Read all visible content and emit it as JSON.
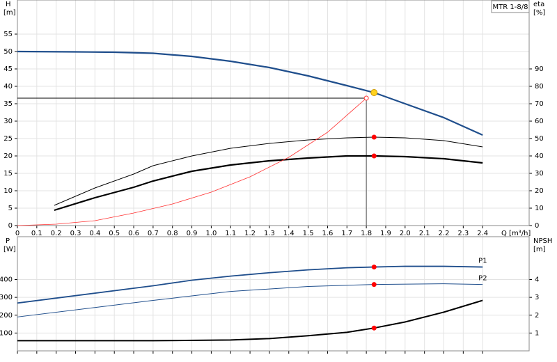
{
  "chart_data": [
    {
      "type": "line",
      "title": "MTR 1-8/8",
      "ylabel": "H",
      "ylabel_unit": "[m]",
      "y2label": "eta",
      "y2label_unit": "[%]",
      "xlabel": "Q [m³/h]",
      "xlim": [
        0,
        2.64
      ],
      "xticks": [
        0,
        0.1,
        0.2,
        0.3,
        0.4,
        0.5,
        0.6,
        0.7,
        0.8,
        0.9,
        {
          "value": 1,
          "label": "1.0"
        },
        1.1,
        1.2,
        1.3,
        1.4,
        1.5,
        1.6,
        1.7,
        1.8,
        1.9,
        {
          "value": 2,
          "label": "2.0"
        },
        2.1,
        2.2,
        2.3,
        2.4
      ],
      "ylim": [
        0,
        64.8
      ],
      "yticks": [
        0,
        5,
        10,
        15,
        20,
        25,
        30,
        35,
        40,
        45,
        50,
        55
      ],
      "y2lim": [
        0,
        129.6
      ],
      "y2ticks": [
        0,
        10,
        20,
        30,
        40,
        50,
        60,
        70,
        80,
        90
      ],
      "grid": true,
      "highlight_x": 1.84,
      "duty_point": {
        "x": 1.8,
        "y": 36.6
      },
      "series": [
        {
          "color": "#1f4e8c",
          "line_width": 2.2,
          "marker_color": "#ffd21f",
          "x": [
            0,
            0.3,
            0.5,
            0.7,
            0.9,
            1.1,
            1.3,
            1.5,
            1.7,
            1.84,
            2.0,
            2.2,
            2.4
          ],
          "values": [
            50,
            49.9,
            49.8,
            49.5,
            48.6,
            47.2,
            45.4,
            43,
            40.2,
            38.2,
            35,
            31,
            26
          ]
        },
        {
          "color": "#000000",
          "line_width": 1,
          "axis": "y2",
          "marker_color": "#ff0000",
          "x": [
            0.19,
            0.4,
            0.6,
            0.7,
            0.9,
            1.1,
            1.3,
            1.5,
            1.7,
            1.84,
            2.0,
            2.2,
            2.4
          ],
          "values": [
            11.6,
            21.6,
            29.6,
            34.4,
            40,
            44.4,
            47.2,
            49.2,
            50.4,
            50.8,
            50.4,
            48.8,
            45.2
          ]
        },
        {
          "color": "#000000",
          "line_width": 2.2,
          "axis": "y2",
          "marker_color": "#ff0000",
          "x": [
            0.19,
            0.4,
            0.6,
            0.7,
            0.9,
            1.1,
            1.3,
            1.5,
            1.7,
            1.84,
            2.0,
            2.2,
            2.4
          ],
          "values": [
            8.8,
            16,
            22,
            25.6,
            31.2,
            34.8,
            37.2,
            38.8,
            40,
            40,
            39.6,
            38.4,
            36
          ]
        },
        {
          "color": "#ff3030",
          "line_width": 0.8,
          "x": [
            0,
            0.2,
            0.4,
            0.6,
            0.8,
            1.0,
            1.2,
            1.4,
            1.6,
            1.8
          ],
          "values": [
            0,
            0.4,
            1.4,
            3.6,
            6.2,
            9.6,
            14,
            19.6,
            26.8,
            36.6
          ]
        }
      ]
    },
    {
      "type": "line",
      "ylabel": "P",
      "ylabel_unit": "[W]",
      "y2label": "NPSH",
      "y2label_unit": "[m]",
      "ylim": [
        0,
        640
      ],
      "yticks": [
        100,
        200,
        300,
        400
      ],
      "y2lim": [
        0,
        6.4
      ],
      "y2ticks": [
        1,
        2,
        3,
        4
      ],
      "grid": true,
      "highlight_x": 1.84,
      "series": [
        {
          "name": "P1",
          "color": "#1f4e8c",
          "line_width": 1.8,
          "marker_color": "#ff0000",
          "x": [
            0,
            0.7,
            0.9,
            1.1,
            1.3,
            1.5,
            1.7,
            1.84,
            2.0,
            2.2,
            2.4
          ],
          "values": [
            268,
            365,
            396,
            419,
            438,
            454,
            466,
            470,
            474,
            474,
            470
          ]
        },
        {
          "name": "P2",
          "color": "#1f4e8c",
          "line_width": 1,
          "marker_color": "#ff0000",
          "x": [
            0,
            0.7,
            1.1,
            1.5,
            1.84,
            2.2,
            2.4
          ],
          "values": [
            190,
            283,
            333,
            361,
            372,
            376,
            372
          ]
        },
        {
          "color": "#000000",
          "line_width": 2,
          "axis": "y2",
          "marker_color": "#ff0000",
          "x": [
            0,
            0.7,
            1.1,
            1.3,
            1.5,
            1.7,
            1.84,
            2.0,
            2.2,
            2.4
          ],
          "values": [
            0.57,
            0.57,
            0.61,
            0.69,
            0.85,
            1.04,
            1.28,
            1.62,
            2.17,
            2.83
          ]
        }
      ]
    }
  ]
}
